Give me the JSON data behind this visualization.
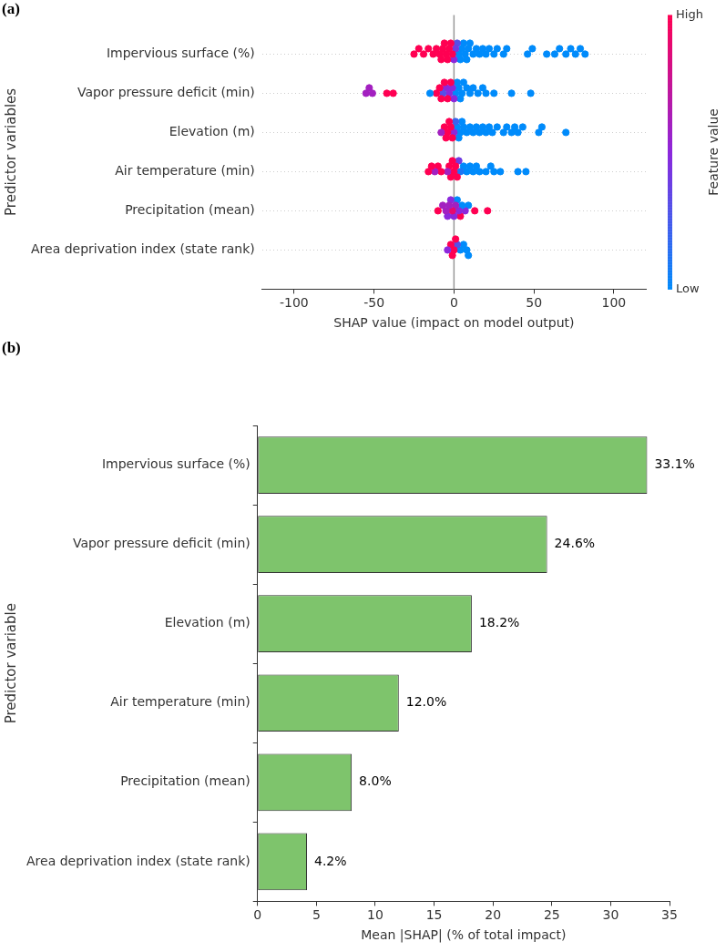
{
  "chart_data": [
    {
      "type": "scatter",
      "title": "(a)",
      "orientation": "horizontal",
      "marker": "circle",
      "xlabel": "SHAP value (impact on model output)",
      "ylabel": "Predictor variables",
      "clabel": "Feature value",
      "categories": [
        "Impervious surface (%)",
        "Vapor pressure deficit (min)",
        "Elevation (m)",
        "Air temperature (min)",
        "Precipitation (mean)",
        "Area deprivation index (state rank)"
      ],
      "series": [
        {
          "colors": [
            "#ff0052",
            "#a320c0",
            "#a320c0",
            "#ff0052",
            "#ff0052",
            "#8c28dc"
          ],
          "values": [
            -25,
            -55,
            -8,
            -16,
            -10,
            -4
          ],
          "cvalues": [
            1,
            0.6,
            0.6,
            1,
            1,
            0.5
          ]
        },
        {
          "colors": [
            "#ff0052",
            "#a320c0",
            "#ff0052",
            "#ff0052",
            "#a320c0",
            "#ff0052"
          ],
          "values": [
            -22,
            -53,
            -6,
            -14,
            -7,
            -2
          ],
          "cvalues": [
            1,
            0.6,
            1,
            1,
            0.6,
            1
          ]
        },
        {
          "colors": [
            "#ff0052",
            "#a320c0",
            "#ff0052",
            "#a320c0",
            "#a320c0",
            "#ff0052"
          ],
          "values": [
            -19,
            -51,
            -5,
            -12,
            -5,
            -1
          ],
          "cvalues": [
            1,
            0.6,
            1,
            0.6,
            0.6,
            1
          ]
        },
        {
          "colors": [
            "#ff0052",
            "#ff0052",
            "#ff0052",
            "#ff0052",
            "#8c28dc",
            "#ff0052"
          ],
          "values": [
            -16,
            -42,
            -4,
            -10,
            -4,
            0
          ],
          "cvalues": [
            1,
            1,
            1,
            1,
            0.5,
            1
          ]
        },
        {
          "colors": [
            "#ff0052",
            "#ff0052",
            "#ff0052",
            "#ff0052",
            "#a320c0",
            "#ff0052"
          ],
          "values": [
            -13,
            -38,
            -3,
            -8,
            -3,
            1
          ],
          "cvalues": [
            1,
            1,
            1,
            1,
            0.6,
            1
          ]
        },
        {
          "colors": [
            "#ff0052",
            "#008bfb",
            "#ff0052",
            "#a320c0",
            "#8c28dc",
            "#5450e8"
          ],
          "values": [
            -11,
            -15,
            -2,
            -4,
            -2,
            2
          ],
          "cvalues": [
            1,
            0,
            1,
            0.6,
            0.5,
            0.3
          ]
        },
        {
          "colors": [
            "#ff0052",
            "#ff0052",
            "#ff0052",
            "#ff0052",
            "#e8086e",
            "#008bfb"
          ],
          "values": [
            -9,
            -11,
            -1,
            -3,
            -1,
            4
          ],
          "cvalues": [
            1,
            1,
            1,
            1,
            0.9,
            0
          ]
        },
        {
          "colors": [
            "#ff0052",
            "#ff0052",
            "#8c28dc",
            "#ff0052",
            "#8c28dc",
            "#008bfb"
          ],
          "values": [
            -8,
            -9,
            0,
            -2,
            0,
            6
          ],
          "cvalues": [
            1,
            1,
            0.5,
            1,
            0.5,
            0
          ]
        },
        {
          "colors": [
            "#ff0052",
            "#ff0052",
            "#3863ef",
            "#ff0052",
            "#a320c0",
            "#008bfb"
          ],
          "values": [
            -7,
            -8,
            1,
            -1,
            1,
            8
          ],
          "cvalues": [
            1,
            1,
            0.2,
            1,
            0.6,
            0
          ]
        },
        {
          "colors": [
            "#ff0052",
            "#5450e8",
            "#008bfb",
            "#ff0052",
            "#008bfb",
            "#008bfb"
          ],
          "values": [
            -6,
            -7,
            2,
            0,
            2,
            9
          ],
          "cvalues": [
            1,
            0.3,
            0,
            1,
            0,
            0
          ]
        },
        {
          "colors": [
            "#ff0052",
            "#ff0052",
            "#008bfb",
            "#ff0052",
            "#8c28dc",
            null
          ],
          "values": [
            -5,
            -6,
            3,
            1,
            3,
            null
          ],
          "cvalues": [
            1,
            1,
            0,
            1,
            0.5,
            null
          ]
        },
        {
          "colors": [
            "#ff0052",
            "#8c28dc",
            "#008bfb",
            "#ff0052",
            "#ff0052",
            null
          ],
          "values": [
            -4,
            -5,
            4,
            2,
            4,
            null
          ],
          "cvalues": [
            1,
            0.5,
            0,
            1,
            1,
            null
          ]
        },
        {
          "colors": [
            "#ff0052",
            "#ff0052",
            "#008bfb",
            "#703ce2",
            "#008bfb",
            null
          ],
          "values": [
            -3,
            -4,
            5,
            3,
            5,
            null
          ],
          "cvalues": [
            1,
            1,
            0,
            0.4,
            0,
            null
          ]
        },
        {
          "colors": [
            "#ff0052",
            "#8c28dc",
            "#008bfb",
            "#1c77f5",
            "#8c28dc",
            null
          ],
          "values": [
            -2,
            -3,
            6,
            4,
            7,
            null
          ],
          "cvalues": [
            1,
            0.5,
            0,
            0.1,
            0.5,
            null
          ]
        },
        {
          "colors": [
            "#ff0052",
            "#ff0052",
            "#008bfb",
            "#008bfb",
            "#008bfb",
            null
          ],
          "values": [
            -1,
            -2,
            8,
            6,
            9,
            null
          ],
          "cvalues": [
            1,
            1,
            0,
            0,
            0,
            null
          ]
        },
        {
          "colors": [
            "#8c28dc",
            "#8c28dc",
            "#008bfb",
            "#008bfb",
            "#ff0052",
            null
          ],
          "values": [
            0,
            -1,
            10,
            8,
            13,
            null
          ],
          "cvalues": [
            0.5,
            0.5,
            0,
            0,
            1,
            null
          ]
        },
        {
          "colors": [
            "#703ce2",
            "#8c28dc",
            "#008bfb",
            "#008bfb",
            "#ff0052",
            null
          ],
          "values": [
            1,
            0,
            12,
            10,
            21,
            null
          ],
          "cvalues": [
            0.4,
            0.5,
            0,
            0,
            1,
            null
          ]
        },
        {
          "colors": [
            "#5450e8",
            "#008bfb",
            "#008bfb",
            "#008bfb",
            null,
            null
          ],
          "values": [
            2,
            1,
            14,
            12,
            null,
            null
          ],
          "cvalues": [
            0.3,
            0,
            0,
            0,
            null,
            null
          ]
        },
        {
          "values": [
            3,
            2,
            16,
            14,
            null,
            null
          ],
          "cvalues": [
            0,
            0,
            0,
            0,
            null,
            null
          ]
        },
        {
          "values": [
            4,
            3,
            18,
            16,
            null,
            null
          ],
          "cvalues": [
            0,
            0,
            0,
            0,
            null,
            null
          ]
        },
        {
          "values": [
            5,
            4,
            20,
            20,
            null,
            null
          ],
          "cvalues": [
            0,
            0,
            0,
            0,
            null,
            null
          ]
        },
        {
          "values": [
            6,
            5,
            22,
            23,
            null,
            null
          ],
          "cvalues": [
            0,
            0,
            0,
            0,
            null,
            null
          ]
        },
        {
          "values": [
            7,
            6,
            24,
            25,
            null,
            null
          ],
          "cvalues": [
            0,
            0,
            0,
            0,
            null,
            null
          ]
        },
        {
          "values": [
            8,
            8,
            27,
            29,
            null,
            null
          ],
          "cvalues": [
            0,
            0,
            0,
            0,
            null,
            null
          ]
        },
        {
          "values": [
            9,
            10,
            31,
            40,
            null,
            null
          ],
          "cvalues": [
            0,
            0,
            0,
            0,
            null,
            null
          ]
        },
        {
          "values": [
            10,
            12,
            33,
            45,
            null,
            null
          ],
          "cvalues": [
            0,
            0,
            0,
            0,
            null,
            null
          ]
        },
        {
          "values": [
            12,
            15,
            36,
            null,
            null,
            null
          ],
          "cvalues": [
            0,
            0,
            0,
            null,
            null,
            null
          ]
        },
        {
          "values": [
            14,
            18,
            38,
            null,
            null,
            null
          ],
          "cvalues": [
            0,
            0,
            0,
            null,
            null,
            null
          ]
        },
        {
          "values": [
            16,
            20,
            40,
            null,
            null,
            null
          ],
          "cvalues": [
            0,
            0,
            0,
            null,
            null,
            null
          ]
        },
        {
          "values": [
            18,
            25,
            43,
            null,
            null,
            null
          ],
          "cvalues": [
            0,
            0,
            0,
            null,
            null,
            null
          ]
        },
        {
          "values": [
            20,
            36,
            53,
            null,
            null,
            null
          ],
          "cvalues": [
            0,
            0,
            0,
            null,
            null,
            null
          ]
        },
        {
          "values": [
            22,
            48,
            55,
            null,
            null,
            null
          ],
          "cvalues": [
            0,
            0,
            0,
            null,
            null,
            null
          ]
        },
        {
          "values": [
            25,
            null,
            70,
            null,
            null,
            null
          ],
          "cvalues": [
            0,
            null,
            0,
            null,
            null,
            null
          ]
        },
        {
          "values": [
            27,
            null,
            null,
            null,
            null,
            null
          ],
          "cvalues": [
            0,
            null,
            null,
            null,
            null,
            null
          ]
        },
        {
          "values": [
            31,
            null,
            null,
            null,
            null,
            null
          ],
          "cvalues": [
            0,
            null,
            null,
            null,
            null,
            null
          ]
        },
        {
          "values": [
            33,
            null,
            null,
            null,
            null,
            null
          ],
          "cvalues": [
            0,
            null,
            null,
            null,
            null,
            null
          ]
        },
        {
          "values": [
            46,
            null,
            null,
            null,
            null,
            null
          ],
          "cvalues": [
            0,
            null,
            null,
            null,
            null,
            null
          ]
        },
        {
          "values": [
            49,
            null,
            null,
            null,
            null,
            null
          ],
          "cvalues": [
            0,
            null,
            null,
            null,
            null,
            null
          ]
        },
        {
          "values": [
            58,
            null,
            null,
            null,
            null,
            null
          ],
          "cvalues": [
            0,
            null,
            null,
            null,
            null,
            null
          ]
        },
        {
          "values": [
            63,
            null,
            null,
            null,
            null,
            null
          ],
          "cvalues": [
            0,
            null,
            null,
            null,
            null,
            null
          ]
        },
        {
          "values": [
            66,
            null,
            null,
            null,
            null,
            null
          ],
          "cvalues": [
            0,
            null,
            null,
            null,
            null,
            null
          ]
        },
        {
          "values": [
            70,
            null,
            null,
            null,
            null,
            null
          ],
          "cvalues": [
            0,
            null,
            null,
            null,
            null,
            null
          ]
        },
        {
          "values": [
            73,
            null,
            null,
            null,
            null,
            null
          ],
          "cvalues": [
            0,
            null,
            null,
            null,
            null,
            null
          ]
        },
        {
          "values": [
            76,
            null,
            null,
            null,
            null,
            null
          ],
          "cvalues": [
            0,
            null,
            null,
            null,
            null,
            null
          ]
        },
        {
          "values": [
            79,
            null,
            null,
            null,
            null,
            null
          ],
          "cvalues": [
            0,
            null,
            null,
            null,
            null,
            null
          ]
        },
        {
          "values": [
            82,
            null,
            null,
            null,
            null,
            null
          ],
          "cvalues": [
            0,
            null,
            null,
            null,
            null,
            null
          ]
        }
      ],
      "xlim": [
        -120,
        120
      ],
      "xticks": [
        -100,
        -50,
        0,
        50,
        100
      ],
      "clim": [
        0,
        1
      ],
      "cticks": [
        {
          "value": 0,
          "label": "Low"
        },
        {
          "value": 1,
          "label": "High"
        }
      ],
      "grid": "y",
      "ref_lines": [
        {
          "axis": "x",
          "value": 0,
          "color": "#999999"
        }
      ]
    },
    {
      "type": "bar",
      "title": "(b)",
      "orientation": "horizontal",
      "xlabel": "Mean |SHAP| (% of total impact)",
      "ylabel": "Predictor variable",
      "categories": [
        "Impervious surface (%)",
        "Vapor pressure deficit (min)",
        "Elevation (m)",
        "Air temperature (min)",
        "Precipitation (mean)",
        "Area deprivation index (state rank)"
      ],
      "values": [
        33.1,
        24.6,
        18.2,
        12.0,
        8.0,
        4.2
      ],
      "color": "#7ec46c",
      "value_labels": [
        "33.1%",
        "24.6%",
        "18.2%",
        "12.0%",
        "8.0%",
        "4.2%"
      ],
      "xlim": [
        0,
        35
      ],
      "xticks": [
        0,
        5,
        10,
        15,
        20,
        25,
        30,
        35
      ]
    }
  ]
}
